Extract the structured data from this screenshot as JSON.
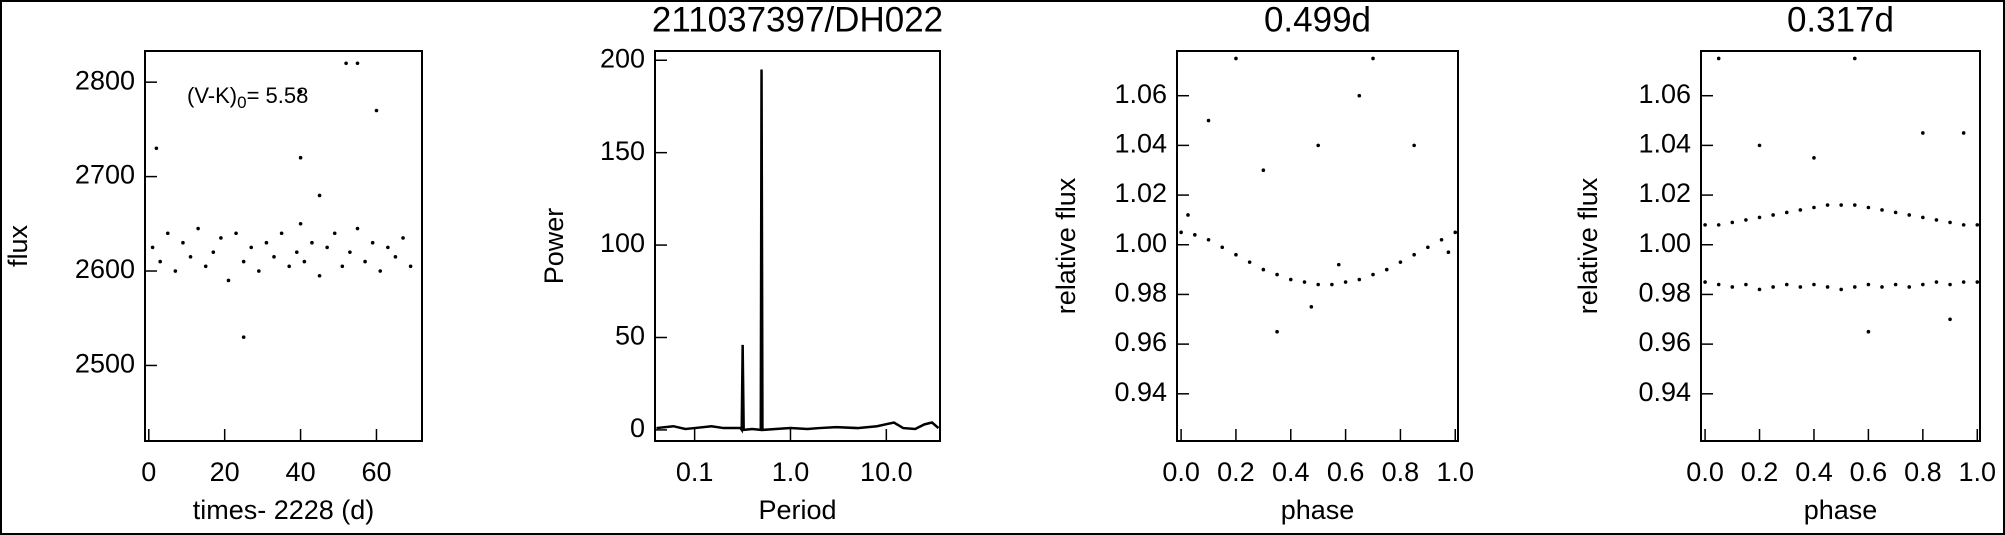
{
  "chart_data": [
    {
      "type": "scatter",
      "ylabel": "flux",
      "xlabel": "times- 2228 (d)",
      "annotation": {
        "text": "(V-K)",
        "subscript": "0",
        "suffix": "= 5.58"
      },
      "color": "#000000",
      "x": [
        1,
        3,
        5,
        7,
        9,
        11,
        13,
        15,
        17,
        19,
        21,
        23,
        25,
        27,
        29,
        31,
        33,
        35,
        37,
        39,
        40,
        41,
        43,
        45,
        47,
        49,
        51,
        53,
        55,
        57,
        59,
        61,
        63,
        65,
        67,
        69,
        25,
        40,
        40,
        52,
        55,
        2,
        45,
        60
      ],
      "values": [
        2625,
        2610,
        2640,
        2600,
        2630,
        2615,
        2645,
        2605,
        2620,
        2635,
        2590,
        2640,
        2610,
        2625,
        2600,
        2630,
        2615,
        2640,
        2605,
        2620,
        2650,
        2610,
        2630,
        2595,
        2625,
        2640,
        2605,
        2620,
        2645,
        2610,
        2630,
        2600,
        2625,
        2615,
        2635,
        2605,
        2530,
        2790,
        2720,
        2820,
        2820,
        2730,
        2680,
        2770
      ],
      "xlim": [
        -1,
        72
      ],
      "ylim": [
        2420,
        2833
      ],
      "xticks": [
        0,
        20,
        40,
        60
      ],
      "yticks": [
        2500,
        2600,
        2700,
        2800
      ]
    },
    {
      "type": "line",
      "title": "211037397/DH022",
      "ylabel": "Power",
      "xlabel": "Period",
      "xlog": true,
      "color": "#000000",
      "x": [
        0.04,
        0.06,
        0.08,
        0.1,
        0.15,
        0.2,
        0.3,
        0.31,
        0.317,
        0.325,
        0.4,
        0.49,
        0.499,
        0.51,
        0.7,
        1,
        1.5,
        2,
        3,
        5,
        8,
        12,
        15,
        20,
        25,
        30,
        35
      ],
      "values": [
        1,
        2,
        0.5,
        1,
        2,
        1,
        1,
        0,
        46,
        0,
        0.5,
        0,
        195,
        0,
        0.5,
        1,
        0.5,
        1,
        1.5,
        1,
        2,
        4,
        1,
        0.5,
        3,
        4,
        1
      ],
      "xlim": [
        0.0386,
        36.3
      ],
      "ylim": [
        -6,
        205
      ],
      "xticks": [
        0.1,
        {
          "value": 1,
          "label": "1.0"
        },
        {
          "value": 10,
          "label": "10.0"
        }
      ],
      "yticks": [
        0,
        50,
        100,
        150,
        200
      ]
    },
    {
      "type": "scatter",
      "title": "0.499d",
      "ylabel": "relative flux",
      "xlabel": "phase",
      "color": "#000000",
      "x": [
        0,
        0.05,
        0.1,
        0.15,
        0.2,
        0.25,
        0.3,
        0.35,
        0.4,
        0.45,
        0.5,
        0.55,
        0.6,
        0.65,
        0.7,
        0.75,
        0.8,
        0.85,
        0.9,
        0.95,
        1,
        0.1,
        0.3,
        0.5,
        0.7,
        0.35,
        0.65,
        0.85,
        0.2,
        0.025,
        0.475,
        0.575,
        0.975
      ],
      "values": [
        1.005,
        1.004,
        1.002,
        0.999,
        0.996,
        0.993,
        0.99,
        0.988,
        0.986,
        0.985,
        0.984,
        0.984,
        0.985,
        0.986,
        0.988,
        0.99,
        0.993,
        0.996,
        0.999,
        1.002,
        1.005,
        1.05,
        1.03,
        1.04,
        1.075,
        0.965,
        1.06,
        1.04,
        1.075,
        1.012,
        0.975,
        0.992,
        0.997
      ],
      "xlim": [
        -0.015,
        1.01
      ],
      "ylim": [
        0.921,
        1.078
      ],
      "xticks": [
        {
          "value": 0,
          "label": "0.0"
        },
        0.2,
        0.4,
        0.6,
        0.8,
        {
          "value": 1,
          "label": "1.0"
        }
      ],
      "yticks": [
        0.94,
        0.96,
        0.98,
        {
          "value": 1,
          "label": "1.00"
        },
        1.02,
        1.04,
        1.06
      ]
    },
    {
      "type": "scatter",
      "title": "0.317d",
      "ylabel": "relative flux",
      "xlabel": "phase",
      "color": "#000000",
      "x": [
        0,
        0,
        0.05,
        0.05,
        0.1,
        0.1,
        0.15,
        0.15,
        0.2,
        0.2,
        0.25,
        0.25,
        0.3,
        0.3,
        0.35,
        0.35,
        0.4,
        0.4,
        0.45,
        0.45,
        0.5,
        0.5,
        0.55,
        0.55,
        0.6,
        0.6,
        0.65,
        0.65,
        0.7,
        0.7,
        0.75,
        0.75,
        0.8,
        0.8,
        0.85,
        0.85,
        0.9,
        0.9,
        0.95,
        0.95,
        1,
        1,
        0.05,
        0.2,
        0.4,
        0.55,
        0.6,
        0.8,
        0.95,
        0.9
      ],
      "values": [
        0.985,
        1.008,
        0.984,
        1.008,
        0.983,
        1.009,
        0.984,
        1.01,
        0.982,
        1.011,
        0.983,
        1.012,
        0.984,
        1.013,
        0.983,
        1.014,
        0.984,
        1.015,
        0.983,
        1.016,
        0.982,
        1.016,
        0.983,
        1.016,
        0.984,
        1.015,
        0.983,
        1.014,
        0.984,
        1.013,
        0.983,
        1.012,
        0.984,
        1.011,
        0.985,
        1.01,
        0.984,
        1.009,
        0.985,
        1.008,
        0.985,
        1.008,
        1.075,
        1.04,
        1.035,
        1.075,
        0.965,
        1.045,
        1.045,
        0.97
      ],
      "xlim": [
        -0.015,
        1.01
      ],
      "ylim": [
        0.921,
        1.078
      ],
      "xticks": [
        {
          "value": 0,
          "label": "0.0"
        },
        0.2,
        0.4,
        0.6,
        0.8,
        {
          "value": 1,
          "label": "1.0"
        }
      ],
      "yticks": [
        0.94,
        0.96,
        0.98,
        {
          "value": 1,
          "label": "1.00"
        },
        1.02,
        1.04,
        1.06
      ]
    }
  ]
}
